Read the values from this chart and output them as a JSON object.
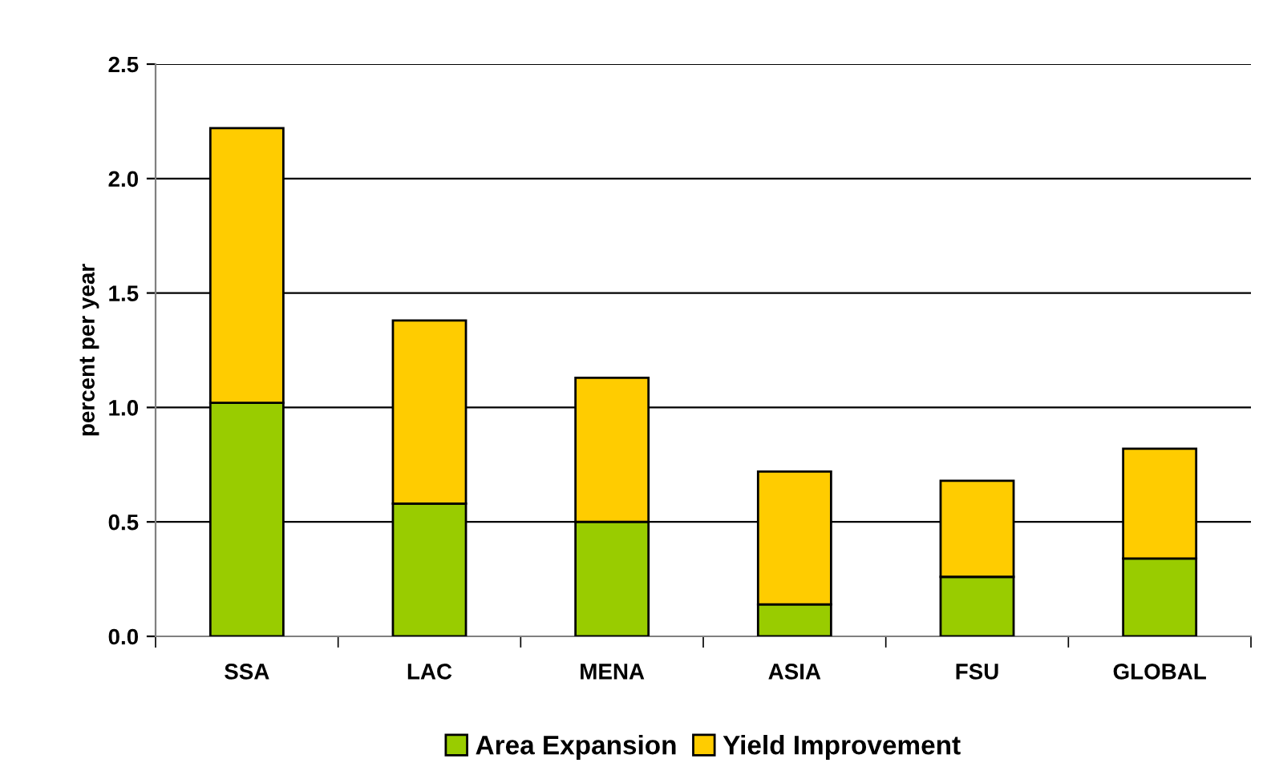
{
  "chart_data": {
    "type": "bar",
    "stacked": true,
    "ylabel": "percent per year",
    "categories": [
      "SSA",
      "LAC",
      "MENA",
      "ASIA",
      "FSU",
      "GLOBAL"
    ],
    "series": [
      {
        "name": "Area Expansion",
        "color": "#99cc00",
        "values": [
          1.02,
          0.58,
          0.5,
          0.14,
          0.26,
          0.34
        ]
      },
      {
        "name": "Yield Improvement",
        "color": "#ffcc00",
        "values": [
          1.2,
          0.8,
          0.63,
          0.58,
          0.42,
          0.48
        ]
      }
    ],
    "ylim": [
      0,
      2.5
    ],
    "yticks": [
      {
        "value": 0,
        "label": "0.0"
      },
      {
        "value": 0.5,
        "label": "0.5"
      },
      {
        "value": 1,
        "label": "1.0"
      },
      {
        "value": 1.5,
        "label": "1.5"
      },
      {
        "value": 2,
        "label": "2.0"
      },
      {
        "value": 2.5,
        "label": "2.5"
      }
    ],
    "grid": "y",
    "legend": "bottom"
  }
}
